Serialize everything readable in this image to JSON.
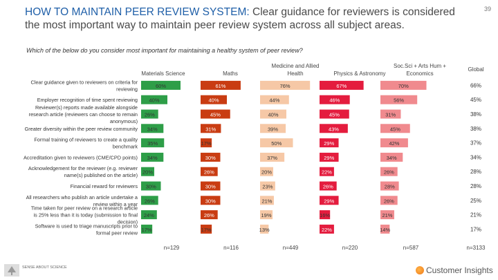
{
  "page_number": "39",
  "title": {
    "highlight": "HOW TO MAINTAIN PEER REVIEW SYSTEM:",
    "rest": " Clear guidance for reviewers is considered the most important way to maintain peer review system across all subject areas."
  },
  "question": "Which of the below do you consider most important for maintaining a healthy system of peer review?",
  "footer": {
    "left_text": "SENSE ABOUT SCIENCE",
    "brand": "Customer Insights"
  },
  "chart_data": {
    "type": "bar",
    "orientation": "horizontal",
    "layout": "small-multiples",
    "categories": [
      "Clear guidance given to reviewers on criteria for reviewing",
      "Employer recognition of time spent reviewing",
      "Reviewer(s) reports made available alongside research article (reviewers can choose to remain anonymous)",
      "Greater diversity within the peer review community",
      "Formal training of reviewers to create a quality benchmark",
      "Accreditation given to reviewers (CME/CPD points)",
      "Acknowledgement for the reviewer (e.g. reviewer name(s) published on the article)",
      "Financial reward for reviewers",
      "All researchers who publish an article undertake a review within a year",
      "Time taken for peer review on a research article is 25% less than it is today (submission to final decision)",
      "Software is used to triage manuscripts prior to formal peer review"
    ],
    "series": [
      {
        "name": "Materials Science",
        "color": "#2e9e48",
        "values": [
          60,
          40,
          26,
          34,
          35,
          34,
          20,
          30,
          26,
          24,
          17
        ],
        "n": "n=129"
      },
      {
        "name": "Maths",
        "color": "#c93c12",
        "values": [
          61,
          40,
          45,
          31,
          17,
          30,
          26,
          30,
          30,
          26,
          17
        ],
        "n": "n=116"
      },
      {
        "name": "Medicine and Allied Health",
        "color": "#f6c8a6",
        "values": [
          76,
          44,
          40,
          39,
          50,
          37,
          20,
          23,
          21,
          19,
          13
        ],
        "n": "n=449"
      },
      {
        "name": "Physics & Astronomy",
        "color": "#e41c3e",
        "values": [
          67,
          46,
          45,
          43,
          29,
          29,
          22,
          26,
          29,
          16,
          22
        ],
        "n": "n=220"
      },
      {
        "name": "Soc.Sci + Arts Hum + Economics",
        "color": "#f08a8e",
        "values": [
          70,
          56,
          31,
          45,
          42,
          34,
          26,
          28,
          26,
          21,
          14
        ],
        "n": "n=587"
      }
    ],
    "global": {
      "name": "Global",
      "values": [
        66,
        45,
        38,
        38,
        37,
        34,
        28,
        28,
        25,
        21,
        17
      ],
      "n": "n=3133"
    },
    "value_suffix": "%",
    "grid": false,
    "legend": "column headers"
  }
}
